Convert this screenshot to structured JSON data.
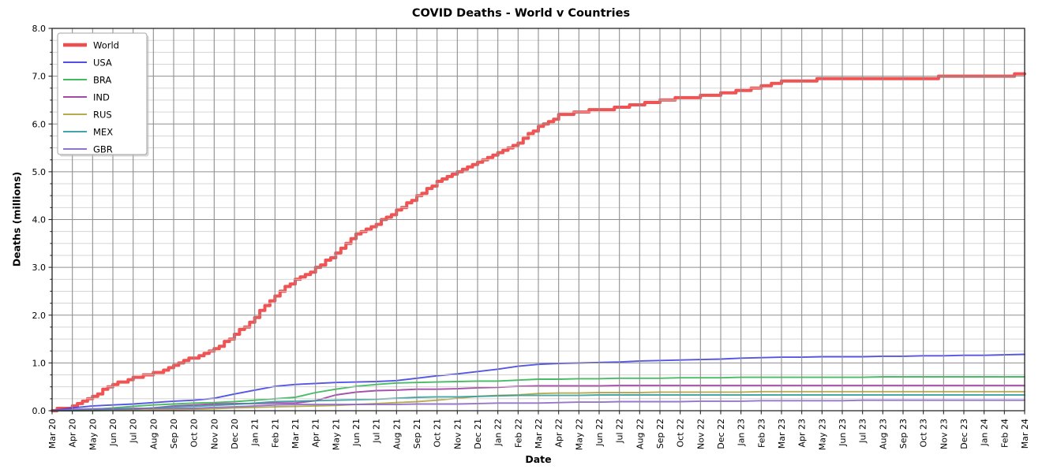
{
  "figure": {
    "title": "COVID Deaths - World v Countries",
    "xlabel": "Date",
    "ylabel": "Deaths (millions)"
  },
  "chart_data": {
    "type": "line",
    "title": "COVID Deaths - World v Countries",
    "xlabel": "Date",
    "ylabel": "Deaths (millions)",
    "ylim": [
      0,
      8
    ],
    "y_major_step": 1.0,
    "y_minor_step": 0.25,
    "y_tick_labels": [
      "0.0",
      "1.0",
      "2.0",
      "3.0",
      "4.0",
      "5.0",
      "6.0",
      "7.0",
      "8.0"
    ],
    "grid": "both",
    "grid_above_data": true,
    "legend_position": "upper-left",
    "colors": {
      "major_grid": "#8f8f8f",
      "minor_grid": "#cfcfcf",
      "spine": "#262626",
      "legend_border": "#a6a6a6",
      "legend_shadow": "#bbbbbb"
    },
    "categories": [
      "Mar 20",
      "Apr 20",
      "May 20",
      "Jun 20",
      "Jul 20",
      "Aug 20",
      "Sep 20",
      "Oct 20",
      "Nov 20",
      "Dec 20",
      "Jan 21",
      "Feb 21",
      "Mar 21",
      "Apr 21",
      "May 21",
      "Jun 21",
      "Jul 21",
      "Aug 21",
      "Sep 21",
      "Oct 21",
      "Nov 21",
      "Dec 21",
      "Jan 22",
      "Feb 22",
      "Mar 22",
      "Apr 22",
      "May 22",
      "Jun 22",
      "Jul 22",
      "Aug 22",
      "Sep 22",
      "Oct 22",
      "Nov 22",
      "Dec 22",
      "Jan 23",
      "Feb 23",
      "Mar 23",
      "Apr 23",
      "May 23",
      "Jun 23",
      "Jul 23",
      "Aug 23",
      "Sep 23",
      "Oct 23",
      "Nov 23",
      "Dec 23",
      "Jan 24",
      "Feb 24",
      "Mar 24"
    ],
    "series": [
      {
        "name": "World",
        "color": "#ee3b3b",
        "width": 4,
        "stepped": true,
        "values": [
          0.01,
          0.08,
          0.3,
          0.55,
          0.68,
          0.78,
          0.96,
          1.12,
          1.28,
          1.58,
          1.97,
          2.41,
          2.74,
          2.98,
          3.28,
          3.68,
          3.92,
          4.18,
          4.48,
          4.78,
          5.0,
          5.2,
          5.42,
          5.62,
          5.95,
          6.18,
          6.25,
          6.3,
          6.34,
          6.42,
          6.49,
          6.54,
          6.58,
          6.63,
          6.69,
          6.78,
          6.88,
          6.91,
          6.93,
          6.95,
          6.96,
          6.96,
          6.97,
          6.97,
          6.98,
          6.99,
          7.0,
          7.02,
          7.04
        ]
      },
      {
        "name": "USA",
        "color": "#3d3de3",
        "width": 1.9,
        "stepped": false,
        "values": [
          0.0,
          0.06,
          0.1,
          0.12,
          0.14,
          0.17,
          0.2,
          0.22,
          0.26,
          0.35,
          0.43,
          0.51,
          0.55,
          0.57,
          0.59,
          0.6,
          0.61,
          0.63,
          0.68,
          0.73,
          0.77,
          0.82,
          0.87,
          0.93,
          0.97,
          0.99,
          1.0,
          1.01,
          1.02,
          1.04,
          1.05,
          1.06,
          1.07,
          1.08,
          1.1,
          1.11,
          1.12,
          1.12,
          1.13,
          1.13,
          1.13,
          1.14,
          1.14,
          1.15,
          1.15,
          1.16,
          1.16,
          1.17,
          1.18
        ]
      },
      {
        "name": "BRA",
        "color": "#2eb44e",
        "width": 1.9,
        "stepped": false,
        "values": [
          0.0,
          0.01,
          0.03,
          0.06,
          0.09,
          0.12,
          0.14,
          0.16,
          0.17,
          0.19,
          0.22,
          0.25,
          0.28,
          0.38,
          0.45,
          0.51,
          0.55,
          0.58,
          0.59,
          0.6,
          0.61,
          0.62,
          0.62,
          0.64,
          0.66,
          0.66,
          0.67,
          0.67,
          0.68,
          0.68,
          0.68,
          0.69,
          0.69,
          0.69,
          0.7,
          0.7,
          0.7,
          0.7,
          0.7,
          0.7,
          0.7,
          0.71,
          0.71,
          0.71,
          0.71,
          0.71,
          0.71,
          0.71,
          0.71
        ]
      },
      {
        "name": "IND",
        "color": "#9c35a0",
        "width": 1.9,
        "stepped": false,
        "values": [
          0.0,
          0.0,
          0.01,
          0.02,
          0.03,
          0.06,
          0.1,
          0.12,
          0.14,
          0.15,
          0.15,
          0.16,
          0.16,
          0.21,
          0.33,
          0.39,
          0.42,
          0.43,
          0.45,
          0.45,
          0.46,
          0.48,
          0.49,
          0.51,
          0.52,
          0.52,
          0.52,
          0.52,
          0.53,
          0.53,
          0.53,
          0.53,
          0.53,
          0.53,
          0.53,
          0.53,
          0.53,
          0.53,
          0.53,
          0.53,
          0.53,
          0.53,
          0.53,
          0.53,
          0.53,
          0.53,
          0.53,
          0.53,
          0.53
        ]
      },
      {
        "name": "RUS",
        "color": "#afa23b",
        "width": 1.9,
        "stepped": false,
        "values": [
          0.0,
          0.0,
          0.0,
          0.01,
          0.01,
          0.02,
          0.02,
          0.03,
          0.04,
          0.06,
          0.07,
          0.08,
          0.09,
          0.1,
          0.11,
          0.13,
          0.15,
          0.17,
          0.19,
          0.22,
          0.26,
          0.3,
          0.32,
          0.33,
          0.36,
          0.37,
          0.37,
          0.38,
          0.38,
          0.38,
          0.39,
          0.39,
          0.39,
          0.39,
          0.39,
          0.4,
          0.4,
          0.4,
          0.4,
          0.4,
          0.4,
          0.4,
          0.4,
          0.4,
          0.4,
          0.4,
          0.4,
          0.4,
          0.4
        ]
      },
      {
        "name": "MEX",
        "color": "#2f9c9c",
        "width": 1.9,
        "stepped": false,
        "values": [
          0.0,
          0.0,
          0.01,
          0.03,
          0.04,
          0.06,
          0.08,
          0.09,
          0.11,
          0.13,
          0.16,
          0.19,
          0.2,
          0.21,
          0.22,
          0.23,
          0.24,
          0.26,
          0.28,
          0.29,
          0.29,
          0.3,
          0.31,
          0.32,
          0.32,
          0.32,
          0.32,
          0.33,
          0.33,
          0.33,
          0.33,
          0.33,
          0.33,
          0.33,
          0.33,
          0.33,
          0.33,
          0.33,
          0.33,
          0.33,
          0.33,
          0.33,
          0.33,
          0.33,
          0.33,
          0.33,
          0.33,
          0.33,
          0.33
        ]
      },
      {
        "name": "GBR",
        "color": "#8763c8",
        "width": 1.9,
        "stepped": false,
        "values": [
          0.0,
          0.03,
          0.04,
          0.04,
          0.05,
          0.05,
          0.05,
          0.05,
          0.07,
          0.08,
          0.1,
          0.12,
          0.13,
          0.13,
          0.13,
          0.13,
          0.13,
          0.13,
          0.14,
          0.14,
          0.14,
          0.15,
          0.16,
          0.16,
          0.16,
          0.17,
          0.18,
          0.18,
          0.19,
          0.19,
          0.19,
          0.19,
          0.2,
          0.2,
          0.2,
          0.21,
          0.21,
          0.21,
          0.21,
          0.21,
          0.22,
          0.22,
          0.22,
          0.22,
          0.22,
          0.22,
          0.22,
          0.22,
          0.22
        ]
      }
    ]
  }
}
